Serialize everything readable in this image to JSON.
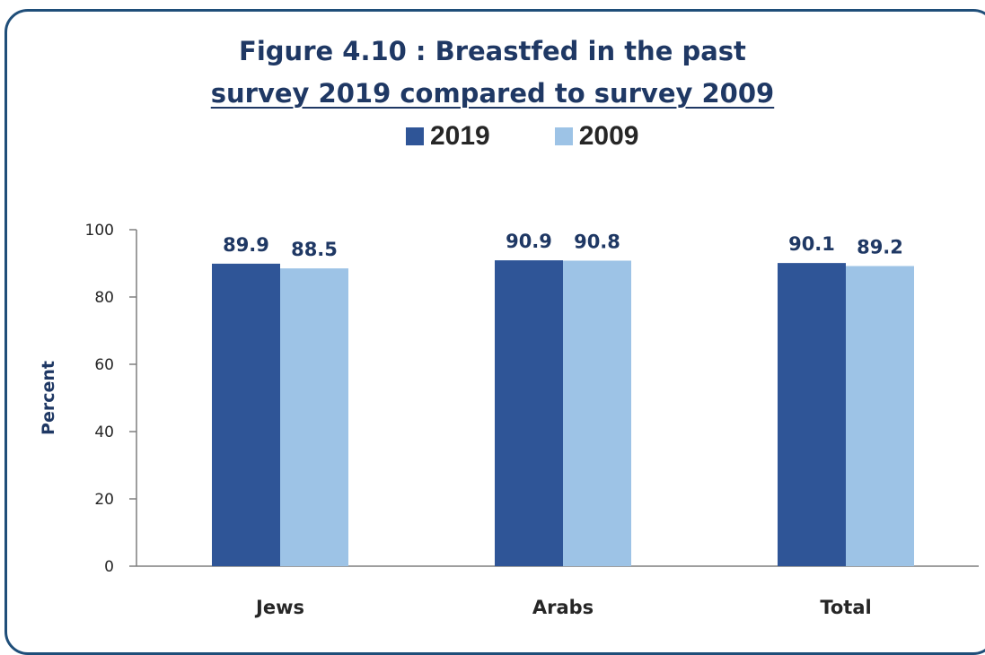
{
  "chart_data": {
    "type": "bar",
    "title": "Figure 4.10 : Breastfed in the past",
    "subtitle": "survey 2019 compared to survey 2009",
    "ylabel": "Percent",
    "xlabel": "",
    "categories": [
      "Jews",
      "Arabs",
      "Total"
    ],
    "series": [
      {
        "name": "2019",
        "values": [
          89.9,
          90.9,
          90.1
        ],
        "color": "#2f5597"
      },
      {
        "name": "2009",
        "values": [
          88.5,
          90.8,
          89.2
        ],
        "color": "#9dc3e6"
      }
    ],
    "ylim": [
      0,
      100
    ],
    "yticks": [
      0,
      20,
      40,
      60,
      80,
      100
    ],
    "grid": false,
    "legend_position": "top-center",
    "data_labels": true,
    "axis_color": "#7f7f7f",
    "frame_color": "#1f4e79",
    "title_color": "#1f3864"
  }
}
